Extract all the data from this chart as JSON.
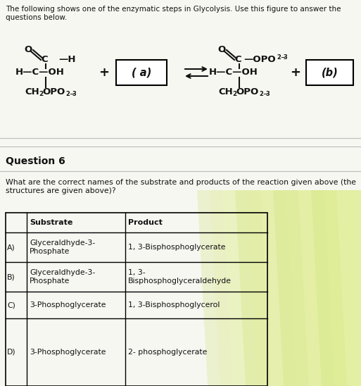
{
  "title_text": "The following shows one of the enzymatic steps in Glycolysis. Use this figure to answer the\nquestions below.",
  "question_label": "Question 6",
  "question_text": "What are the correct names of the substrate and products of the reaction given above (the\nstructures are given above)?",
  "table_headers": [
    "Substrate",
    "Product"
  ],
  "table_rows": [
    [
      "A)",
      "Glyceraldhyde-3-\nPhosphate",
      "1, 3-Bisphosphoglycerate"
    ],
    [
      "B)",
      "Glyceraldhyde-3-\nPhosphate",
      "1, 3-\nBisphosphoglyceraldehyde"
    ],
    [
      "C)",
      "3-Phosphoglycerate",
      "1, 3-Bisphosphoglycerol"
    ],
    [
      "D)",
      "3-Phosphoglycerate",
      "2- phosphoglycerate"
    ]
  ],
  "bg_color": "#f7f7f2",
  "text_color": "#111111",
  "dpi": 100,
  "fig_width": 5.13,
  "fig_height": 5.48
}
